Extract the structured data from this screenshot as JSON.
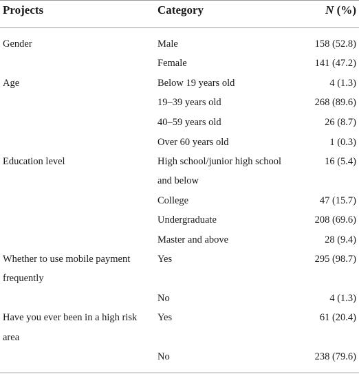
{
  "table": {
    "headers": {
      "projects": "Projects",
      "category": "Category",
      "n_label": "N",
      "n_suffix": " (%)"
    },
    "rows": [
      {
        "project": "Gender",
        "category": "Male",
        "n": "158 (52.8)"
      },
      {
        "project": "",
        "category": "Female",
        "n": "141 (47.2)"
      },
      {
        "project": "Age",
        "category": "Below 19 years old",
        "n": "4 (1.3)"
      },
      {
        "project": "",
        "category": "19–39 years old",
        "n": "268 (89.6)"
      },
      {
        "project": "",
        "category": "40–59 years old",
        "n": "26 (8.7)"
      },
      {
        "project": "",
        "category": "Over 60 years old",
        "n": "1 (0.3)"
      },
      {
        "project": "Education level",
        "category": "High school/junior high school",
        "n": "16 (5.4)"
      },
      {
        "project": "",
        "category": "and below",
        "n": ""
      },
      {
        "project": "",
        "category": "College",
        "n": "47 (15.7)"
      },
      {
        "project": "",
        "category": "Undergraduate",
        "n": "208 (69.6)"
      },
      {
        "project": "",
        "category": "Master and above",
        "n": "28 (9.4)"
      },
      {
        "project": "Whether to use mobile payment",
        "category": "Yes",
        "n": "295 (98.7)"
      },
      {
        "project": "frequently",
        "category": "",
        "n": ""
      },
      {
        "project": "",
        "category": "No",
        "n": "4 (1.3)"
      },
      {
        "project": "Have you ever been in a high risk",
        "category": "Yes",
        "n": "61 (20.4)"
      },
      {
        "project": "area",
        "category": "",
        "n": ""
      },
      {
        "project": "",
        "category": "No",
        "n": "238 (79.6)"
      }
    ]
  }
}
